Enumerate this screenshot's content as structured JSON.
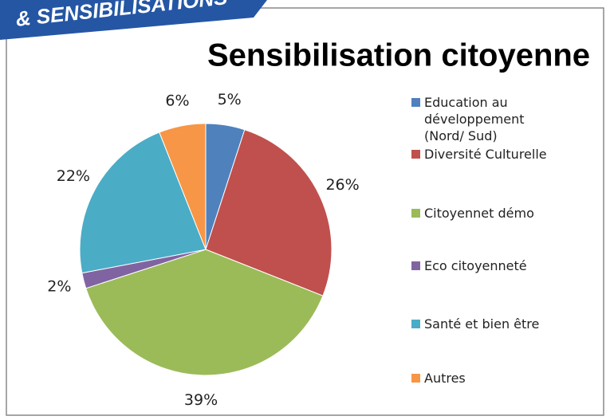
{
  "banner": "& SENSIBILISATIONS",
  "chart_data": {
    "type": "pie",
    "title": "Sensibilisation citoyenne",
    "categories": [
      "Education au développement (Nord/ Sud)",
      "Diversité Culturelle",
      "Citoyennet démo",
      "Eco citoyenneté",
      "Santé et bien être",
      "Autres"
    ],
    "values": [
      5,
      26,
      39,
      2,
      22,
      6
    ],
    "value_labels": [
      "5%",
      "26%",
      "39%",
      "2%",
      "22%",
      "6%"
    ],
    "colors": [
      "#4f81bd",
      "#c0504d",
      "#9bbb59",
      "#8064a2",
      "#4bacc6",
      "#f79646"
    ],
    "legend": "right"
  }
}
